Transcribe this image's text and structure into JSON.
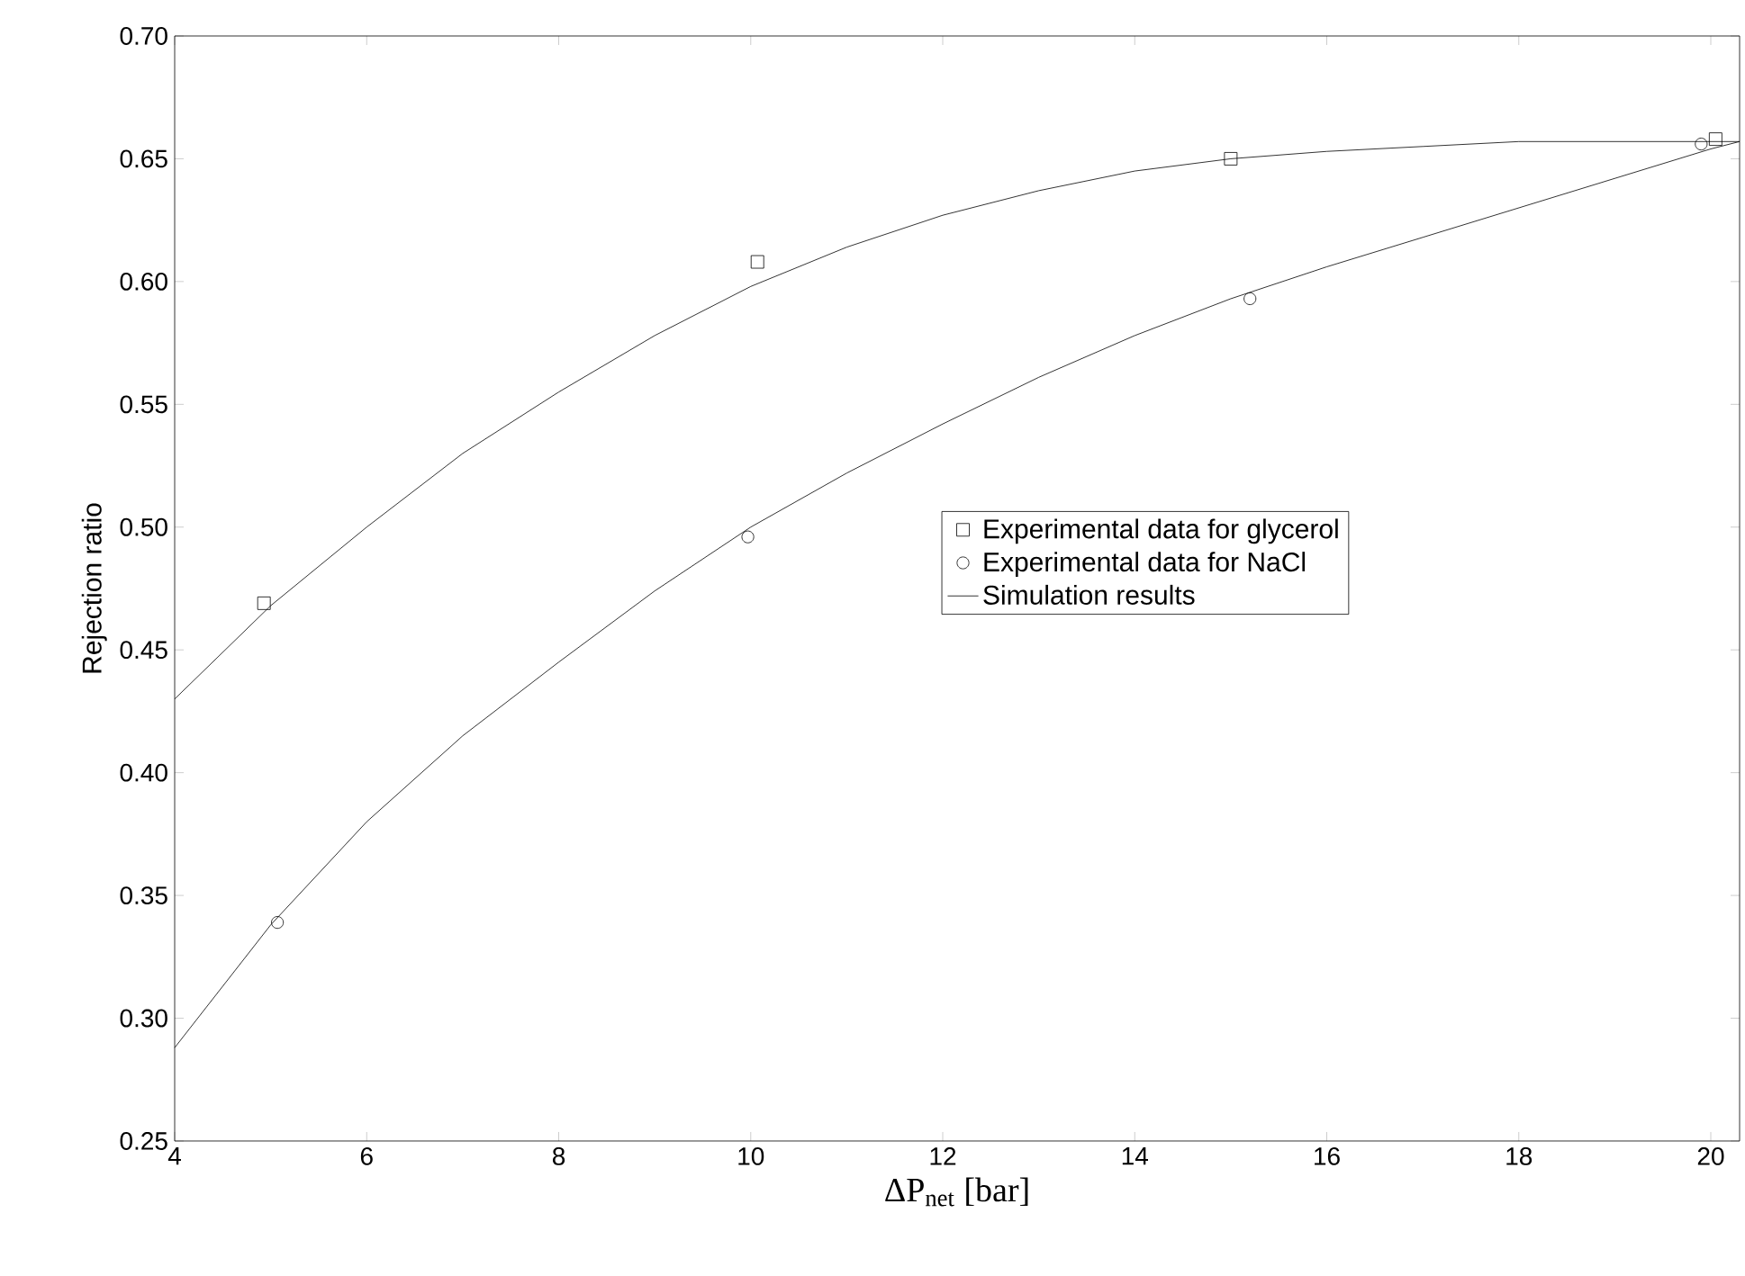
{
  "chart_data": {
    "type": "scatter",
    "xlabel": "ΔP$_{net}$ [bar]",
    "ylabel": "Rejection ratio",
    "xlim": [
      4,
      20.3
    ],
    "ylim": [
      0.25,
      0.7
    ],
    "xticks": [
      4,
      6,
      8,
      10,
      12,
      14,
      16,
      18,
      20
    ],
    "yticks": [
      {
        "value": 0.25,
        "label": "0.25"
      },
      {
        "value": 0.3,
        "label": "0.30"
      },
      {
        "value": 0.35,
        "label": "0.35"
      },
      {
        "value": 0.4,
        "label": "0.40"
      },
      {
        "value": 0.45,
        "label": "0.45"
      },
      {
        "value": 0.5,
        "label": "0.50"
      },
      {
        "value": 0.55,
        "label": "0.55"
      },
      {
        "value": 0.6,
        "label": "0.60"
      },
      {
        "value": 0.65,
        "label": "0.65"
      },
      {
        "value": 0.7,
        "label": "0.70"
      }
    ],
    "grid": false,
    "legend": "right",
    "series": [
      {
        "name": "Experimental data for glycerol",
        "marker": "square",
        "color": "#000000",
        "x": [
          4.93,
          10.07,
          15.0,
          20.05
        ],
        "values": [
          0.469,
          0.608,
          0.65,
          0.658
        ]
      },
      {
        "name": "Experimental data for NaCl",
        "marker": "circle",
        "color": "#000000",
        "x": [
          5.07,
          9.97,
          15.2,
          19.9
        ],
        "values": [
          0.339,
          0.496,
          0.593,
          0.656
        ]
      },
      {
        "name": "Simulation results",
        "type": "line",
        "marker": "none",
        "line_style": "solid",
        "color": "#000000",
        "x": [
          4,
          5,
          6,
          7,
          8,
          9,
          10,
          11,
          12,
          13,
          14,
          15,
          16,
          17,
          18,
          19,
          20,
          20.3
        ],
        "values": [
          0.43,
          0.468,
          0.5,
          0.53,
          0.555,
          0.578,
          0.598,
          0.614,
          0.627,
          0.637,
          0.645,
          0.65,
          0.653,
          0.655,
          0.657,
          0.657,
          0.657,
          0.657
        ]
      },
      {
        "type": "line",
        "marker": "none",
        "line_style": "solid",
        "color": "#000000",
        "x": [
          4,
          5,
          6,
          7,
          8,
          9,
          10,
          11,
          12,
          13,
          14,
          15,
          16,
          17,
          18,
          19,
          20,
          20.3
        ],
        "values": [
          0.288,
          0.338,
          0.38,
          0.415,
          0.445,
          0.474,
          0.5,
          0.522,
          0.542,
          0.561,
          0.578,
          0.593,
          0.606,
          0.618,
          0.63,
          0.642,
          0.654,
          0.657
        ]
      }
    ]
  }
}
